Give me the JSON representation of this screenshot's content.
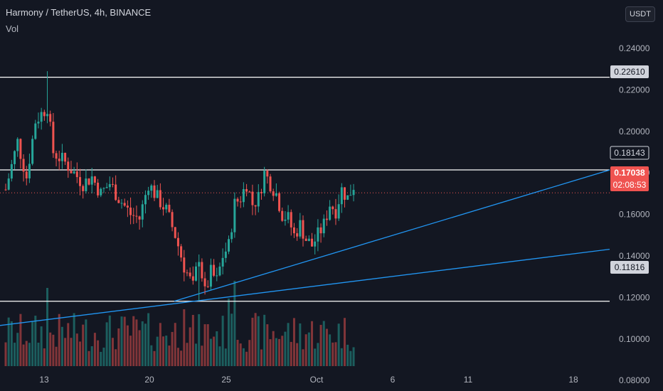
{
  "header": {
    "title": "Harmony / TetherUS, 4h, BINANCE",
    "volume_label": "Vol",
    "currency_button": "USDT"
  },
  "colors": {
    "background": "#131722",
    "up": "#26a69a",
    "down": "#ef5350",
    "trendline": "#2196f3",
    "level_line": "#ffffff",
    "current_price_tag": "#ef5350"
  },
  "price_tags": {
    "upper_level": "0.22610",
    "resistance": "0.18143",
    "current": "0.17038",
    "countdown": "02:08:53",
    "support": "0.11816"
  },
  "chart_data": {
    "type": "candlestick",
    "title": "Harmony / TetherUS, 4h, BINANCE",
    "y_axis": {
      "ticks": [
        "0.24000",
        "0.22000",
        "0.20000",
        "0.18000",
        "0.16000",
        "0.14000",
        "0.12000",
        "0.10000",
        "0.08000"
      ],
      "range": [
        0.065,
        0.252
      ]
    },
    "x_axis": {
      "ticks": [
        "13",
        "20",
        "25",
        "Oct",
        "6",
        "11",
        "18"
      ]
    },
    "horizontal_levels": [
      0.2261,
      0.18143,
      0.11816
    ],
    "current_price": 0.17038,
    "trendlines": [
      {
        "from": [
          "Sep 22",
          0.1182
        ],
        "to": [
          "Oct 20",
          0.1814
        ]
      },
      {
        "from": [
          "Sep 9",
          0.1065
        ],
        "to": [
          "Oct 20",
          0.1432
        ]
      }
    ],
    "candle_path": [
      [
        0,
        0.172
      ],
      [
        4,
        0.195
      ],
      [
        7,
        0.178
      ],
      [
        10,
        0.205
      ],
      [
        14,
        0.212
      ],
      [
        16,
        0.19
      ],
      [
        20,
        0.185
      ],
      [
        23,
        0.18
      ],
      [
        26,
        0.175
      ],
      [
        29,
        0.178
      ],
      [
        32,
        0.17
      ],
      [
        35,
        0.175
      ],
      [
        38,
        0.168
      ],
      [
        42,
        0.16
      ],
      [
        45,
        0.158
      ],
      [
        48,
        0.175
      ],
      [
        51,
        0.168
      ],
      [
        54,
        0.162
      ],
      [
        57,
        0.15
      ],
      [
        60,
        0.135
      ],
      [
        63,
        0.125
      ],
      [
        65,
        0.14
      ],
      [
        67,
        0.122
      ],
      [
        69,
        0.132
      ],
      [
        71,
        0.128
      ],
      [
        73,
        0.14
      ],
      [
        75,
        0.145
      ],
      [
        77,
        0.165
      ],
      [
        79,
        0.168
      ],
      [
        81,
        0.175
      ],
      [
        83,
        0.165
      ],
      [
        85,
        0.168
      ],
      [
        87,
        0.18
      ],
      [
        89,
        0.175
      ],
      [
        91,
        0.17
      ],
      [
        93,
        0.16
      ],
      [
        95,
        0.158
      ],
      [
        97,
        0.15
      ],
      [
        99,
        0.155
      ],
      [
        101,
        0.148
      ],
      [
        103,
        0.145
      ],
      [
        105,
        0.15
      ],
      [
        107,
        0.155
      ],
      [
        109,
        0.165
      ],
      [
        111,
        0.162
      ],
      [
        113,
        0.172
      ],
      [
        115,
        0.168
      ],
      [
        117,
        0.174
      ]
    ],
    "series": [
      {
        "name": "Vol",
        "type": "bar"
      }
    ]
  }
}
